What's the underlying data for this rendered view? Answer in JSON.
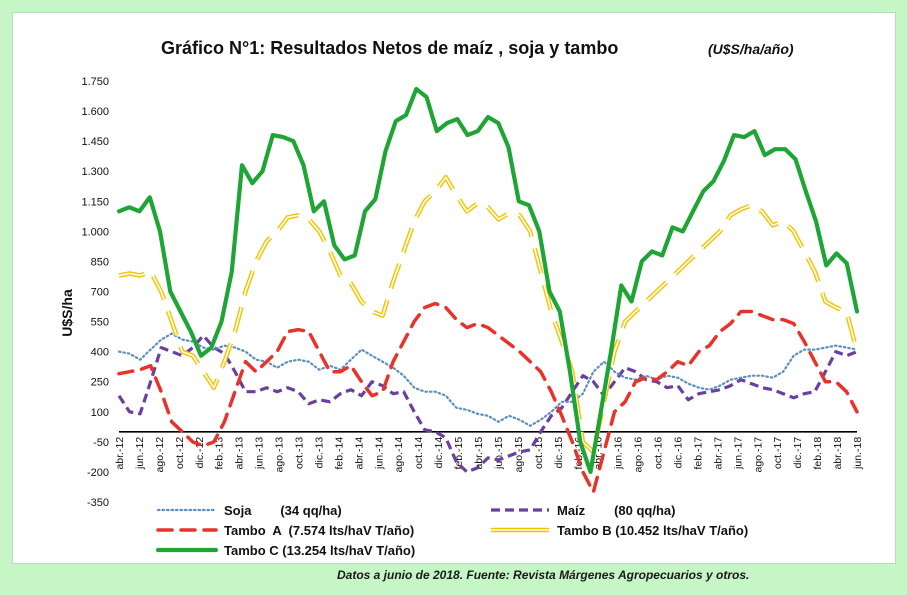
{
  "chart_data": {
    "type": "line",
    "title": "Gráfico N°1: Resultados Netos de maíz , soja y tambo",
    "title_units": "(U$S/ha/año)",
    "ylabel": "U$S/ha",
    "ylim": [
      -350,
      1750
    ],
    "yticks": [
      -350,
      -200,
      -50,
      100,
      250,
      400,
      550,
      700,
      850,
      1000,
      1150,
      1300,
      1450,
      1600,
      1750
    ],
    "ytick_labels": [
      "-350",
      "-200",
      "-50",
      "100",
      "250",
      "400",
      "550",
      "700",
      "850",
      "1.000",
      "1.150",
      "1.300",
      "1.450",
      "1.600",
      "1.750"
    ],
    "x_labels": [
      "abr.-12",
      "jun.-12",
      "ago.-12",
      "oct.-12",
      "dic.-12",
      "feb.-13",
      "abr.-13",
      "jun.-13",
      "ago.-13",
      "oct.-13",
      "dic.-13",
      "feb.-14",
      "abr.-14",
      "jun.-14",
      "ago.-14",
      "oct.-14",
      "dic.-14",
      "feb.-15",
      "abr.-15",
      "jun.-15",
      "ago.-15",
      "oct.-15",
      "dic.-15",
      "feb.-16",
      "abr.-16",
      "jun.-16",
      "ago.-16",
      "oct.-16",
      "dic.-16",
      "feb.-17",
      "abr.-17",
      "jun.-17",
      "ago.-17",
      "oct.-17",
      "dic.-17",
      "feb.-18",
      "abr.-18",
      "jun.-18"
    ],
    "x_start": "abr.-12",
    "x_end": "jun.-18",
    "zero_line": 0,
    "grid": false,
    "legend_position": "bottom",
    "series": [
      {
        "name": "Soja        (34 qq/ha)",
        "color": "#5b8ec1",
        "style": "dotted",
        "values": [
          400,
          390,
          360,
          410,
          460,
          490,
          460,
          450,
          420,
          410,
          430,
          420,
          400,
          360,
          350,
          320,
          350,
          360,
          350,
          310,
          330,
          310,
          360,
          410,
          380,
          350,
          320,
          280,
          220,
          200,
          200,
          180,
          120,
          110,
          90,
          80,
          50,
          80,
          60,
          30,
          60,
          100,
          150,
          150,
          190,
          300,
          350,
          300,
          270,
          260,
          280,
          260,
          280,
          270,
          240,
          220,
          210,
          230,
          260,
          270,
          280,
          280,
          270,
          300,
          380,
          410,
          410,
          420,
          430,
          420,
          410
        ]
      },
      {
        "name": "Maíz        (80 qq/ha)",
        "color": "#6b3fa0",
        "style": "dashed",
        "values": [
          180,
          100,
          90,
          250,
          420,
          400,
          380,
          420,
          480,
          420,
          390,
          300,
          200,
          200,
          220,
          200,
          220,
          200,
          140,
          160,
          150,
          190,
          210,
          180,
          250,
          230,
          190,
          200,
          100,
          10,
          0,
          -30,
          -150,
          -200,
          -180,
          -130,
          -140,
          -120,
          -100,
          -90,
          0,
          80,
          120,
          200,
          280,
          250,
          180,
          250,
          320,
          300,
          260,
          250,
          220,
          230,
          160,
          190,
          200,
          210,
          230,
          260,
          240,
          220,
          210,
          190,
          170,
          190,
          200,
          300,
          400,
          380,
          400
        ]
      },
      {
        "name": "Tambo  A  (7.574 lts/haV T/año)",
        "color": "#e8322a",
        "style": "long-dash",
        "values": [
          290,
          300,
          310,
          330,
          200,
          50,
          0,
          -50,
          -70,
          -50,
          50,
          200,
          350,
          300,
          350,
          400,
          500,
          510,
          500,
          400,
          300,
          300,
          330,
          250,
          180,
          200,
          350,
          450,
          550,
          620,
          640,
          620,
          560,
          520,
          540,
          520,
          480,
          440,
          400,
          350,
          300,
          200,
          80,
          -50,
          -200,
          -300,
          -100,
          100,
          150,
          250,
          270,
          260,
          300,
          350,
          330,
          400,
          430,
          500,
          540,
          600,
          600,
          580,
          560,
          560,
          540,
          450,
          350,
          250,
          250,
          200,
          100
        ]
      },
      {
        "name": "Tambo B (10.452 lts/haV T/año)",
        "color": "#f2c400",
        "style": "double",
        "values": [
          780,
          790,
          780,
          800,
          700,
          550,
          400,
          380,
          300,
          220,
          350,
          500,
          700,
          850,
          950,
          1000,
          1070,
          1080,
          1060,
          1000,
          900,
          780,
          740,
          650,
          600,
          580,
          750,
          900,
          1050,
          1150,
          1200,
          1270,
          1180,
          1100,
          1140,
          1120,
          1060,
          1090,
          1080,
          1000,
          800,
          600,
          450,
          300,
          -50,
          -100,
          150,
          400,
          550,
          600,
          650,
          700,
          750,
          800,
          850,
          900,
          950,
          1000,
          1080,
          1110,
          1130,
          1100,
          1030,
          1050,
          1000,
          900,
          800,
          650,
          620,
          600,
          400
        ]
      },
      {
        "name": "Tambo C (13.254 lts/haV T/año)",
        "color": "#1fa535",
        "style": "solid",
        "values": [
          1100,
          1120,
          1100,
          1170,
          1000,
          700,
          600,
          500,
          380,
          420,
          550,
          800,
          1330,
          1240,
          1300,
          1480,
          1470,
          1450,
          1330,
          1100,
          1150,
          930,
          860,
          880,
          1100,
          1160,
          1400,
          1550,
          1580,
          1710,
          1670,
          1500,
          1540,
          1560,
          1480,
          1500,
          1570,
          1540,
          1420,
          1150,
          1130,
          1000,
          700,
          600,
          300,
          -50,
          -200,
          100,
          400,
          730,
          650,
          850,
          900,
          880,
          1020,
          1000,
          1100,
          1200,
          1250,
          1350,
          1480,
          1470,
          1500,
          1380,
          1410,
          1410,
          1360,
          1200,
          1050,
          830,
          890,
          840,
          600
        ]
      }
    ]
  },
  "source_note": "Datos  a junio de 2018. Fuente: Revista  Márgenes  Agropecuarios  y otros."
}
